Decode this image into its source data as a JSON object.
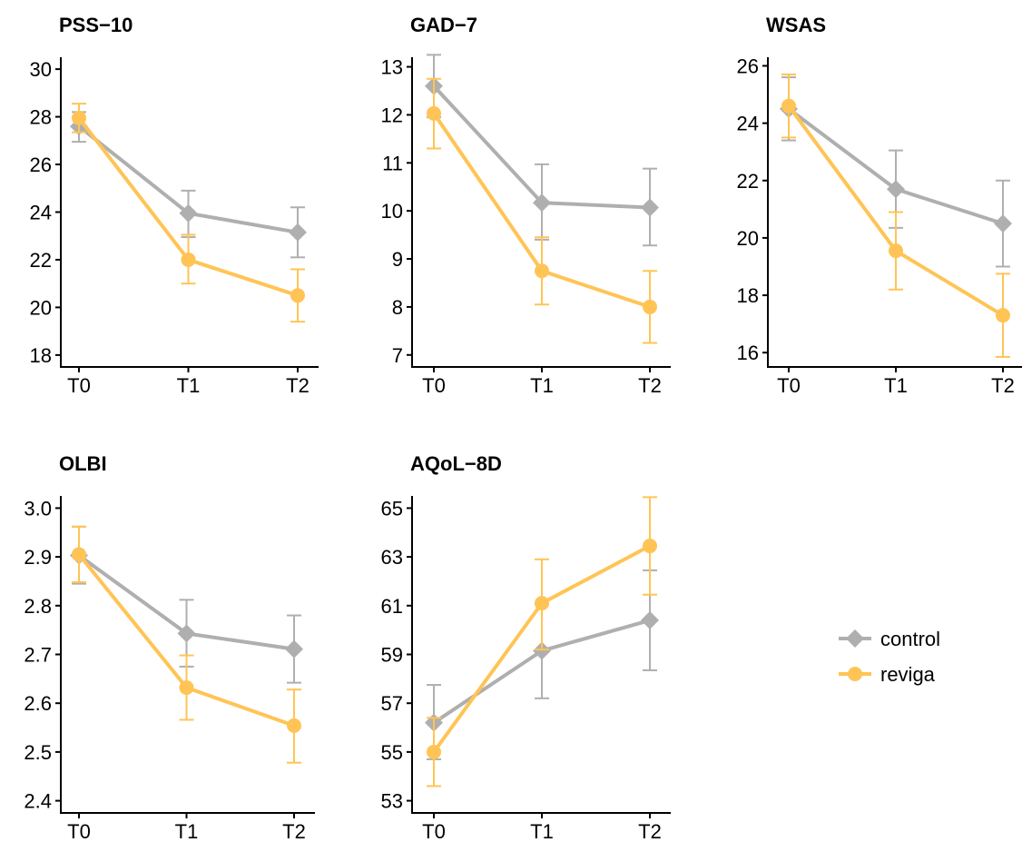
{
  "legend": {
    "items": [
      {
        "label": "control",
        "color": "#AFAFAF",
        "marker": "diamond"
      },
      {
        "label": "reviga",
        "color": "#FFC455",
        "marker": "circle"
      }
    ]
  },
  "chart_data": [
    {
      "type": "line",
      "title": "PSS−10",
      "categories": [
        "T0",
        "T1",
        "T2"
      ],
      "yticks": [
        "18",
        "20",
        "22",
        "24",
        "26",
        "28",
        "30"
      ],
      "ylim": [
        17.5,
        30.5
      ],
      "series": [
        {
          "name": "control",
          "values": [
            27.6,
            23.95,
            23.15
          ],
          "lower": [
            26.95,
            22.95,
            22.1
          ],
          "upper": [
            28.2,
            24.9,
            24.2
          ]
        },
        {
          "name": "reviga",
          "values": [
            27.95,
            22.0,
            20.5
          ],
          "lower": [
            27.35,
            21.0,
            19.4
          ],
          "upper": [
            28.55,
            23.05,
            21.6
          ]
        }
      ]
    },
    {
      "type": "line",
      "title": "GAD−7",
      "categories": [
        "T0",
        "T1",
        "T2"
      ],
      "yticks": [
        "7",
        "8",
        "9",
        "10",
        "11",
        "12",
        "13"
      ],
      "ylim": [
        6.75,
        13.2
      ],
      "series": [
        {
          "name": "control",
          "values": [
            12.6,
            10.17,
            10.07
          ],
          "lower": [
            11.95,
            9.4,
            9.28
          ],
          "upper": [
            13.25,
            10.97,
            10.88
          ]
        },
        {
          "name": "reviga",
          "values": [
            12.03,
            8.75,
            8.0
          ],
          "lower": [
            11.3,
            8.05,
            7.25
          ],
          "upper": [
            12.75,
            9.45,
            8.75
          ]
        }
      ]
    },
    {
      "type": "line",
      "title": "WSAS",
      "categories": [
        "T0",
        "T1",
        "T2"
      ],
      "yticks": [
        "16",
        "18",
        "20",
        "22",
        "24",
        "26"
      ],
      "ylim": [
        15.5,
        26.3
      ],
      "series": [
        {
          "name": "control",
          "values": [
            24.5,
            21.7,
            20.5
          ],
          "lower": [
            23.4,
            20.35,
            19.0
          ],
          "upper": [
            25.6,
            23.05,
            22.0
          ]
        },
        {
          "name": "reviga",
          "values": [
            24.6,
            19.55,
            17.3
          ],
          "lower": [
            23.5,
            18.2,
            15.85
          ],
          "upper": [
            25.7,
            20.9,
            18.75
          ]
        }
      ]
    },
    {
      "type": "line",
      "title": "OLBI",
      "categories": [
        "T0",
        "T1",
        "T2"
      ],
      "yticks": [
        "2.4",
        "2.5",
        "2.6",
        "2.7",
        "2.8",
        "2.9",
        "3.0"
      ],
      "ylim": [
        2.375,
        3.025
      ],
      "series": [
        {
          "name": "control",
          "values": [
            2.903,
            2.743,
            2.711
          ],
          "lower": [
            2.845,
            2.675,
            2.642
          ],
          "upper": [
            2.962,
            2.812,
            2.78
          ]
        },
        {
          "name": "reviga",
          "values": [
            2.905,
            2.632,
            2.554
          ],
          "lower": [
            2.848,
            2.566,
            2.478
          ],
          "upper": [
            2.962,
            2.698,
            2.628
          ]
        }
      ]
    },
    {
      "type": "line",
      "title": "AQoL−8D",
      "categories": [
        "T0",
        "T1",
        "T2"
      ],
      "yticks": [
        "53",
        "55",
        "57",
        "59",
        "61",
        "63",
        "65"
      ],
      "ylim": [
        52.5,
        65.5
      ],
      "series": [
        {
          "name": "control",
          "values": [
            56.2,
            59.15,
            60.4
          ],
          "lower": [
            54.7,
            57.2,
            58.35
          ],
          "upper": [
            57.75,
            61.1,
            62.45
          ]
        },
        {
          "name": "reviga",
          "values": [
            55.0,
            61.1,
            63.45
          ],
          "lower": [
            53.6,
            59.2,
            61.45
          ],
          "upper": [
            56.4,
            62.9,
            65.45
          ]
        }
      ]
    }
  ]
}
